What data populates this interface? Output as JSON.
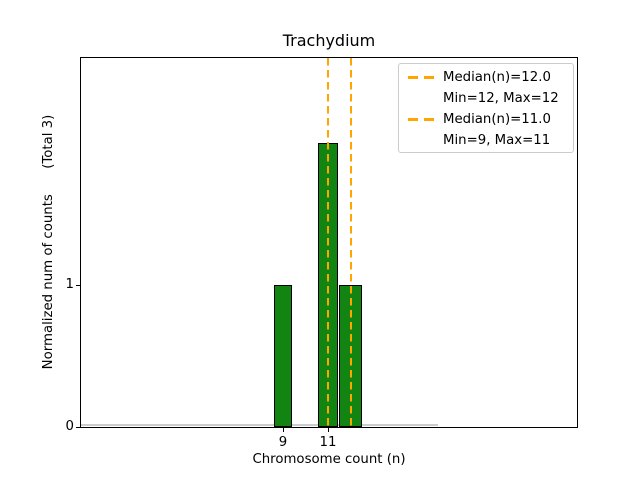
{
  "title": "Trachydium",
  "axes": {
    "xlabel": "Chromosome count (n)",
    "ylabel": "Normalized num of counts      (Total 3)",
    "x_ticks": [
      "9",
      "11"
    ],
    "y_ticks": [
      "0",
      "1"
    ]
  },
  "legend": {
    "items": [
      {
        "marker": "orange-dashed-line",
        "label": "Median(n)=12.0"
      },
      {
        "marker": "none",
        "label": "Min=12, Max=12"
      },
      {
        "marker": "orange-dashed-line",
        "label": "Median(n)=11.0"
      },
      {
        "marker": "none",
        "label": "Min=9, Max=11"
      }
    ]
  },
  "colors": {
    "bar_fill": "#128412",
    "bar_edge": "#000000",
    "median_line": "#FFA500",
    "baseline_artifact": "#cccccc"
  },
  "chart_data": {
    "type": "bar",
    "title": "Trachydium",
    "xlabel": "Chromosome count (n)",
    "ylabel": "Normalized num of counts (Total 3)",
    "total_counts": 3,
    "x": [
      9,
      11,
      12
    ],
    "values": [
      1,
      2,
      1
    ],
    "bin_width_units": [
      0.8,
      0.9,
      1.0
    ],
    "x_tick_values": [
      9,
      11
    ],
    "y_tick_values": [
      0,
      1
    ],
    "ylim": [
      0,
      2.6
    ],
    "grid": false,
    "legend_position": "upper right",
    "median_lines": [
      {
        "median_n": 12.0,
        "min": 12,
        "max": 12
      },
      {
        "median_n": 11.0,
        "min": 9,
        "max": 11
      }
    ]
  }
}
